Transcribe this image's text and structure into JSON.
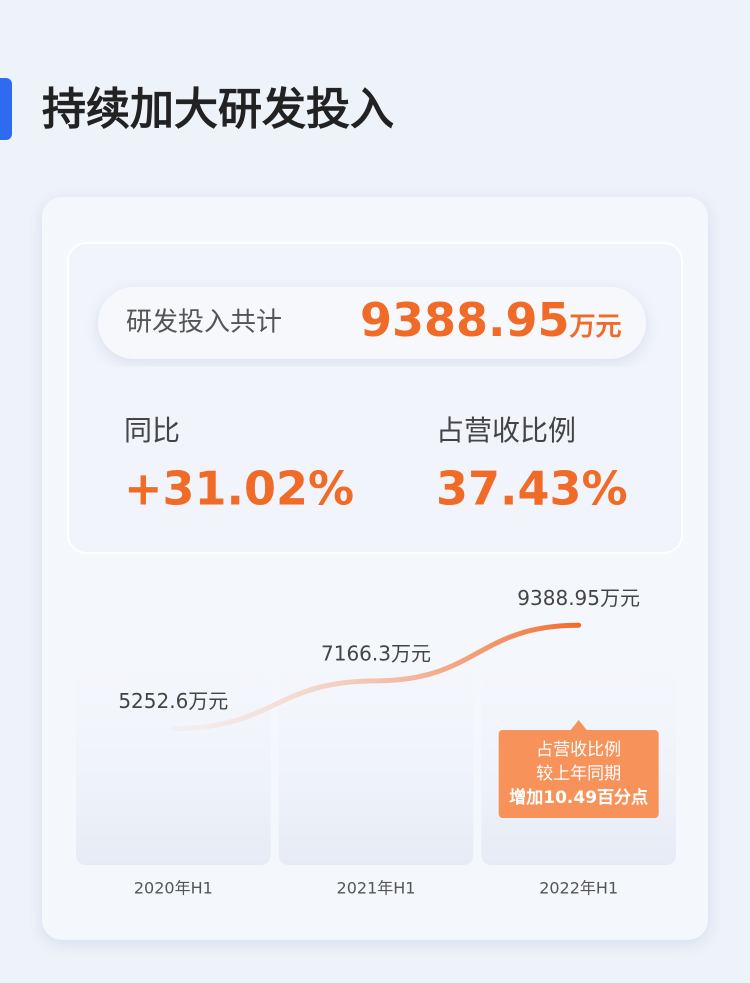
{
  "title": "持续加大研发投入",
  "summary": {
    "label": "研发投入共计",
    "value": "9388.95",
    "unit": "万元"
  },
  "stats": [
    {
      "label": "同比",
      "value": "+31.02%"
    },
    {
      "label": "占营收比例",
      "value": "37.43%"
    }
  ],
  "chart_data": {
    "type": "line",
    "categories": [
      "2020年H1",
      "2021年H1",
      "2022年H1"
    ],
    "values": [
      5252.6,
      7166.3,
      9388.95
    ],
    "value_labels": [
      "5252.6万元",
      "7166.3万元",
      "9388.95万元"
    ],
    "color": "#f26b2a",
    "annotation": [
      "占营收比例",
      "较上年同期",
      "增加10.49百分点"
    ]
  }
}
